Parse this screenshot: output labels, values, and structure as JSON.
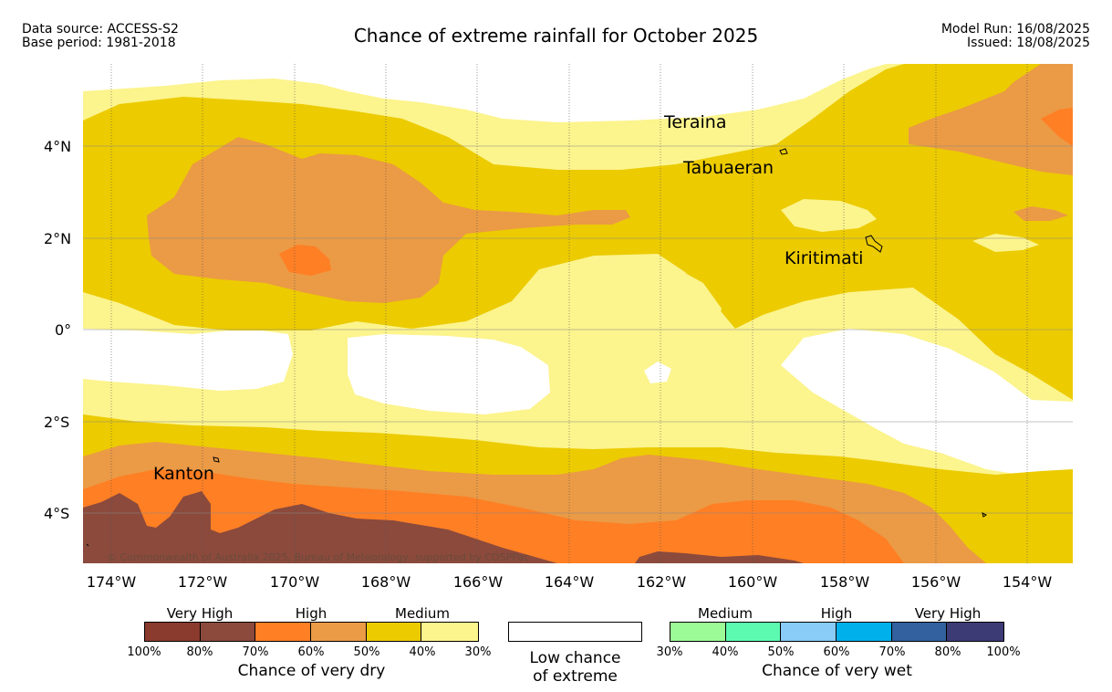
{
  "header": {
    "data_source": "Data source: ACCESS-S2",
    "base_period": "Base period: 1981-2018",
    "title": "Chance of extreme rainfall for October 2025",
    "model_run": "Model Run: 16/08/2025",
    "issued": "Issued: 18/08/2025"
  },
  "map": {
    "copyright": "© Commonwealth of Australia 2025, Bureau of Meteorology, supported by COSPPac",
    "places": [
      "Teraina",
      "Tabuaeran",
      "Kiritimati",
      "Kanton"
    ],
    "lat_labels": [
      "4°N",
      "2°N",
      "0°",
      "2°S",
      "4°S"
    ],
    "lon_labels": [
      "174°W",
      "172°W",
      "170°W",
      "168°W",
      "166°W",
      "164°W",
      "162°W",
      "160°W",
      "158°W",
      "156°W",
      "154°W"
    ],
    "colors": {
      "dry_very_high_100_80": "#8b3a2e",
      "dry_very_high_80_70": "#8b4a3c",
      "dry_high_70_60": "#ff7f24",
      "dry_high_60_50": "#eb9a45",
      "dry_medium_50_40": "#eccb00",
      "dry_medium_40_30": "#fcf48d",
      "low": "#ffffff"
    }
  },
  "legend": {
    "dry": {
      "groups": [
        "Very High",
        "High",
        "Medium"
      ],
      "percent_labels": [
        "100%",
        "80%",
        "70%",
        "60%",
        "50%",
        "40%",
        "30%"
      ],
      "colors": [
        "#8b3a2e",
        "#8b4a3c",
        "#ff7f24",
        "#eb9a45",
        "#eccb00",
        "#fcf48d"
      ],
      "caption": "Chance of very dry"
    },
    "low": {
      "line1": "Low chance",
      "line2": "of extreme"
    },
    "wet": {
      "groups": [
        "Medium",
        "High",
        "Very High"
      ],
      "percent_labels": [
        "30%",
        "40%",
        "50%",
        "60%",
        "70%",
        "80%",
        "100%"
      ],
      "colors": [
        "#9cfb96",
        "#5cfab0",
        "#88ccf7",
        "#00b0ea",
        "#33609e",
        "#3d3b76"
      ],
      "caption": "Chance of very wet"
    }
  }
}
